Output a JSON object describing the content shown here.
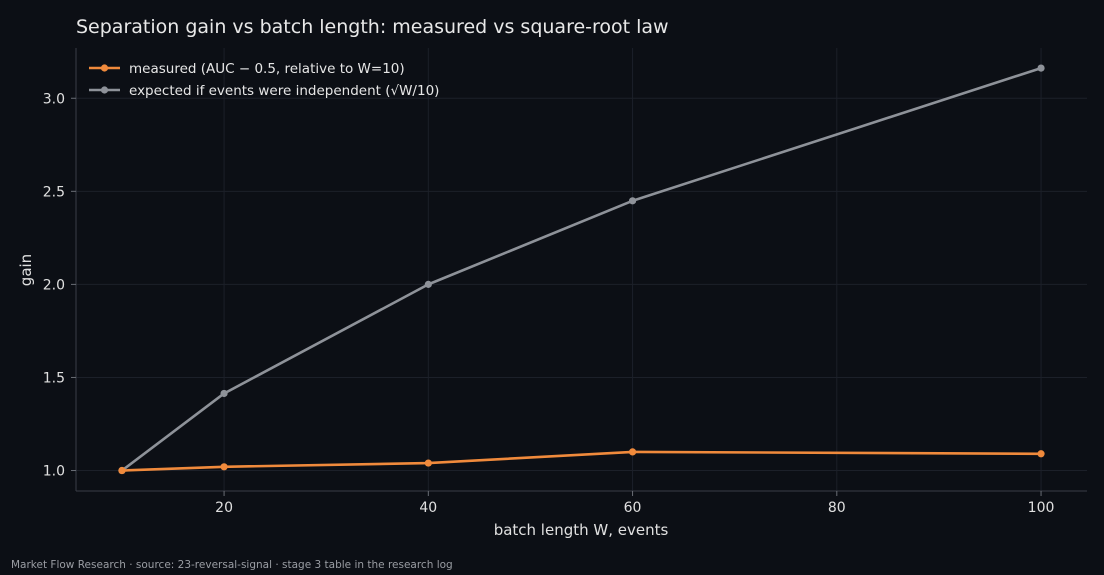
{
  "chart_data": {
    "type": "line",
    "title": "Separation gain vs batch length: measured vs square-root law",
    "xlabel": "batch length W, events",
    "ylabel": "gain",
    "xlim": [
      5.5,
      104.5
    ],
    "ylim": [
      0.89,
      3.27
    ],
    "xticks": [
      20,
      40,
      60,
      80,
      100
    ],
    "yticks": [
      1.0,
      1.5,
      2.0,
      2.5,
      3.0
    ],
    "grid": true,
    "legend_position": "top-left",
    "series": [
      {
        "name": "measured (AUC − 0.5, relative to W=10)",
        "color": "#f08a3c",
        "x": [
          10,
          20,
          40,
          60,
          100
        ],
        "y": [
          1.0,
          1.02,
          1.04,
          1.1,
          1.09
        ]
      },
      {
        "name": "expected if events were independent (√W/10)",
        "color": "#8e9299",
        "x": [
          10,
          20,
          40,
          60,
          100
        ],
        "y": [
          1.0,
          1.414,
          2.0,
          2.449,
          3.162
        ]
      }
    ]
  },
  "footer": {
    "text": "Market Flow Research · source: 23-reversal-signal · stage 3 table in the research log"
  }
}
